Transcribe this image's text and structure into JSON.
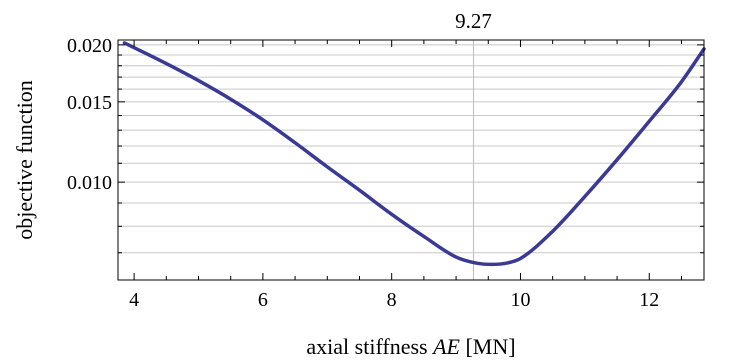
{
  "chart_data": {
    "type": "line",
    "title": "",
    "xlabel_prefix": "axial stiffness ",
    "xlabel_symbol": "AE",
    "xlabel_unit": " [MN]",
    "ylabel": "objective function",
    "xlim": [
      3.75,
      12.85
    ],
    "ylim": [
      0.0061,
      0.0205
    ],
    "y_scale": "log",
    "x_ticks": [
      4,
      6,
      8,
      10,
      12
    ],
    "y_ticks": [
      0.01,
      0.015,
      0.02
    ],
    "y_tick_labels": [
      "0.010",
      "0.015",
      "0.020"
    ],
    "y_gridlines": [
      0.007,
      0.008,
      0.009,
      0.01,
      0.011,
      0.012,
      0.013,
      0.014,
      0.015,
      0.016,
      0.017,
      0.018,
      0.019,
      0.02
    ],
    "grid": true,
    "vertical_line": {
      "x": 9.27,
      "label": "9.27"
    },
    "series": [
      {
        "color": "#3a3a96",
        "x": [
          3.85,
          4.5,
          5.0,
          5.5,
          6.0,
          6.5,
          7.0,
          7.5,
          8.0,
          8.5,
          9.0,
          9.3,
          9.55,
          9.8,
          10.0,
          10.5,
          11.0,
          11.5,
          12.0,
          12.5,
          12.85
        ],
        "y": [
          0.0202,
          0.0182,
          0.0167,
          0.0152,
          0.0137,
          0.0122,
          0.0108,
          0.0096,
          0.0085,
          0.0076,
          0.00685,
          0.00665,
          0.0066,
          0.00665,
          0.0068,
          0.0078,
          0.0093,
          0.0112,
          0.0136,
          0.0166,
          0.0196
        ]
      }
    ]
  }
}
